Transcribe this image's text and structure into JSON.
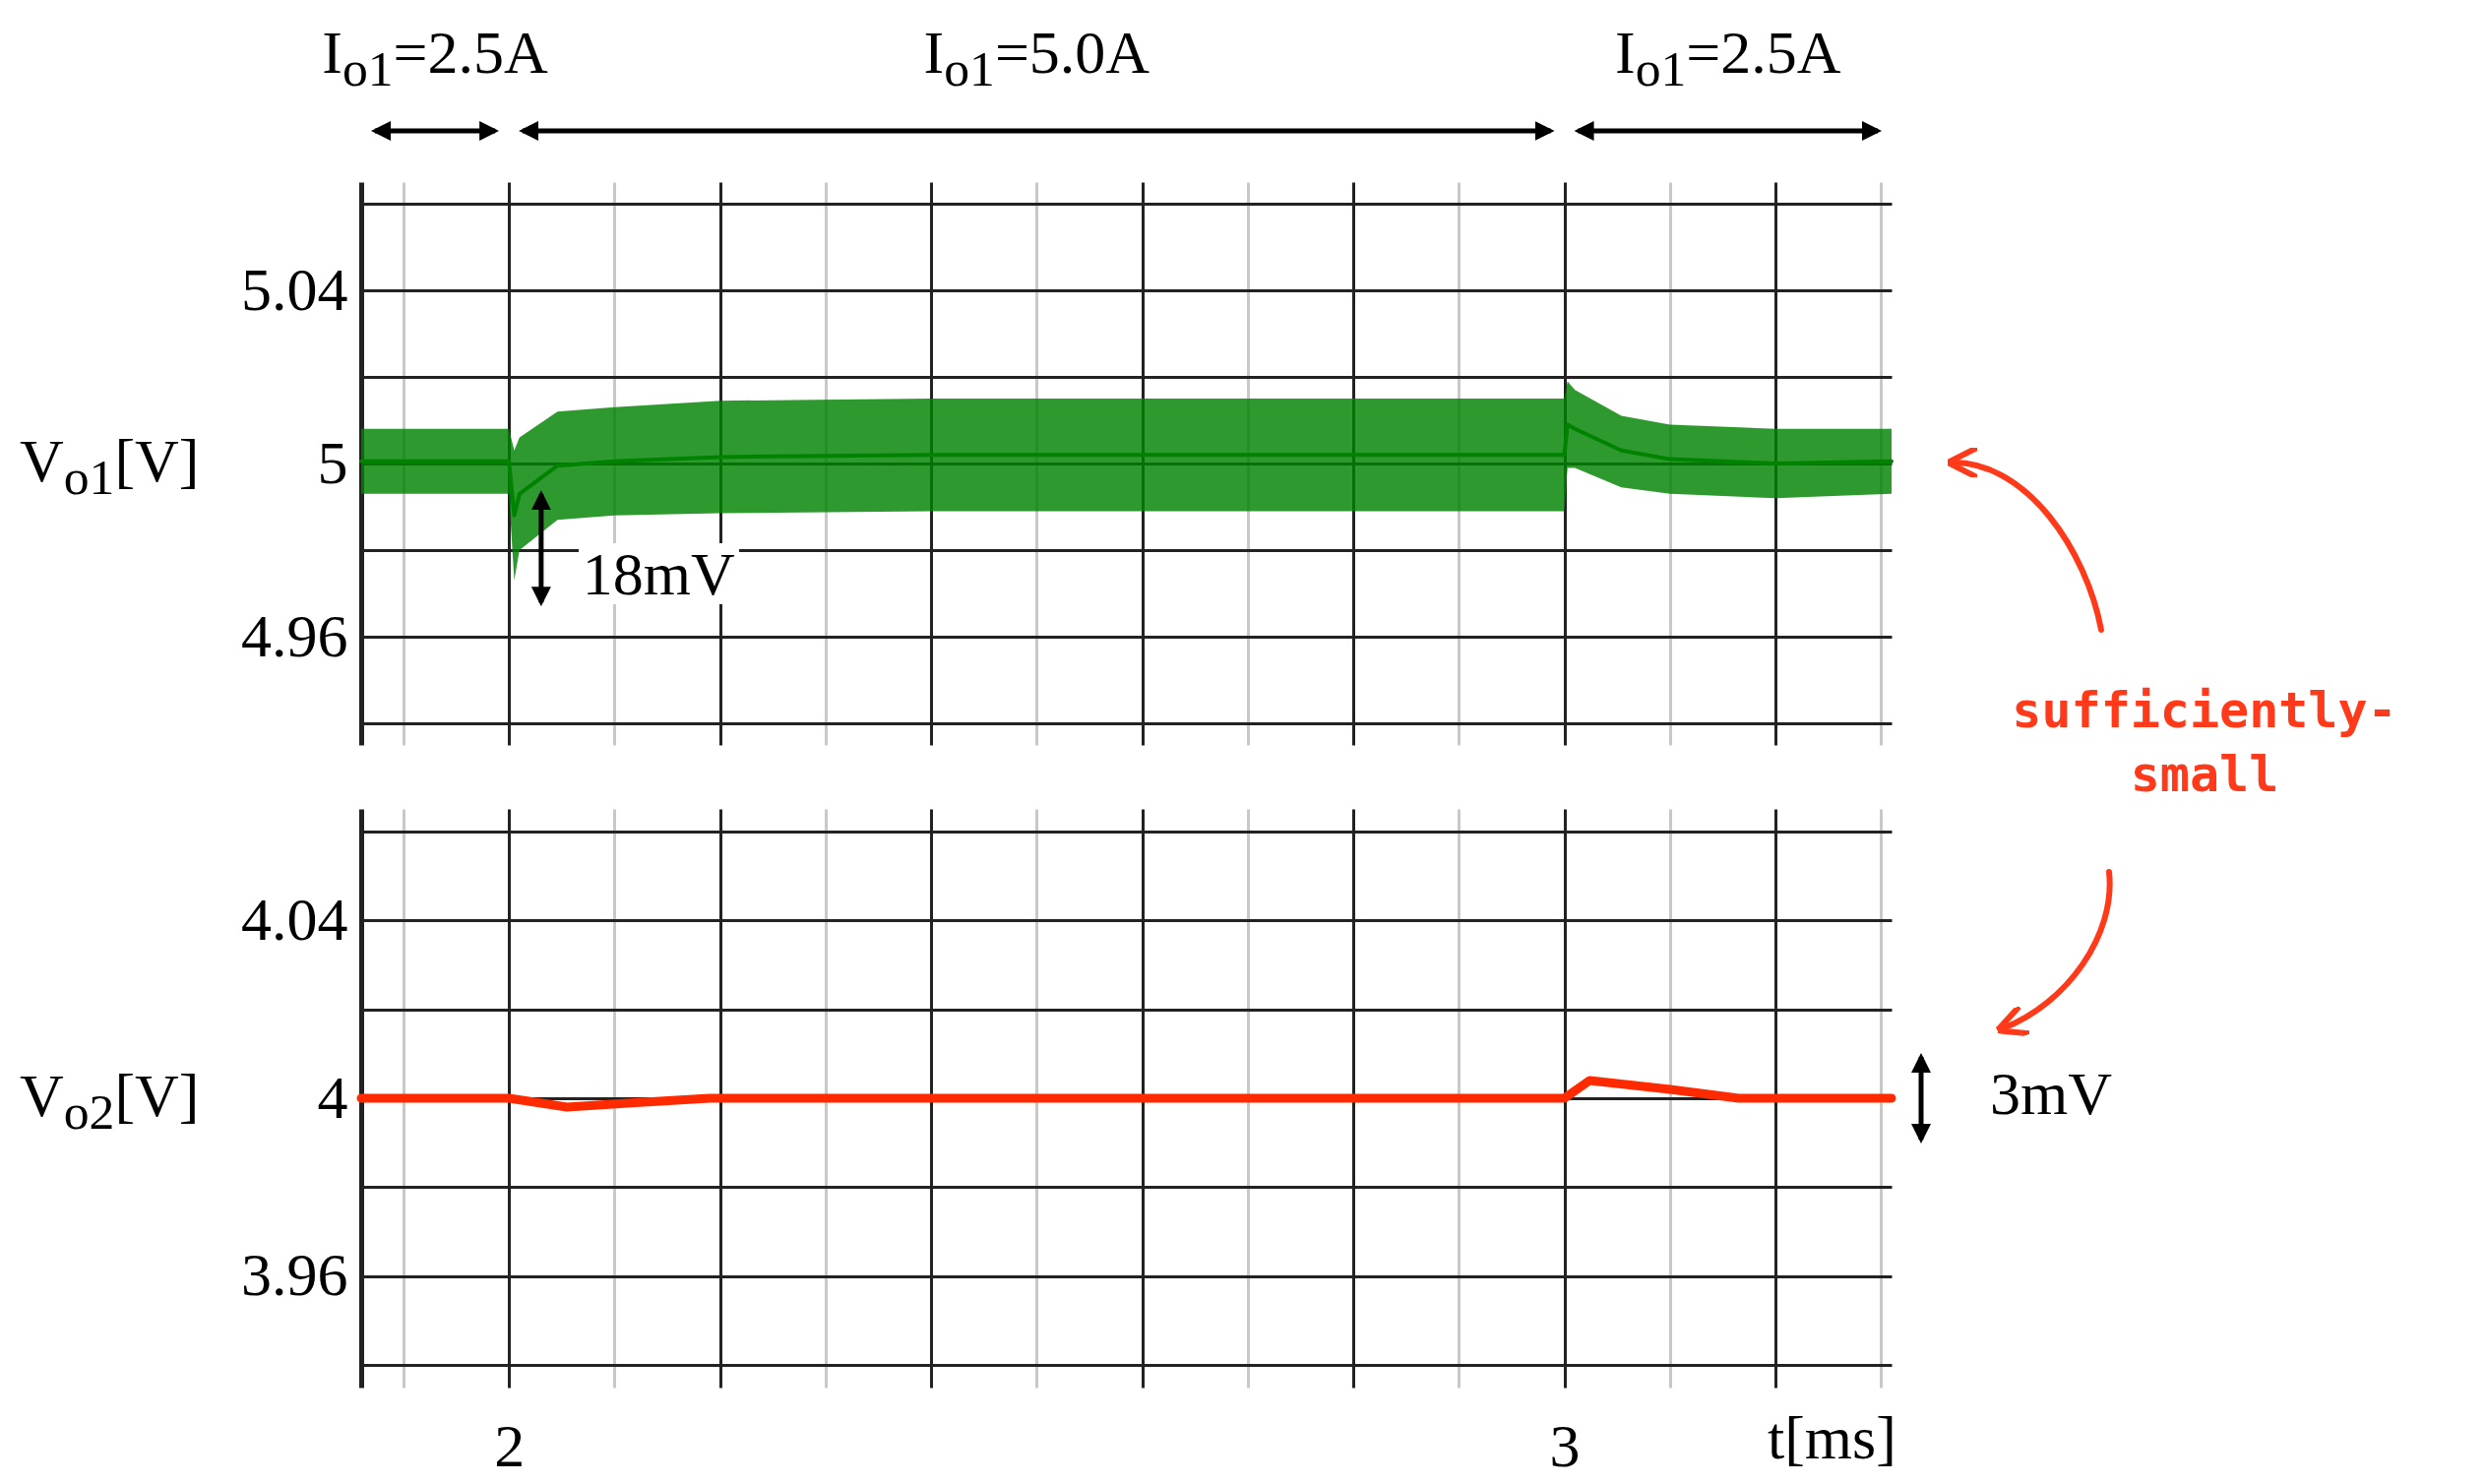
{
  "chart_data": [
    {
      "type": "line",
      "ylabel": "V$_{o1}$[V]",
      "xlim": [
        1.86,
        3.31
      ],
      "ylim": [
        4.935,
        5.065
      ],
      "tick_labels": "y",
      "grid": true,
      "xticks": [
        {
          "value": 1.9,
          "label": null
        },
        {
          "value": 2,
          "label": null
        },
        {
          "value": 2.1,
          "label": null
        },
        {
          "value": 2.2,
          "label": null
        },
        {
          "value": 2.3,
          "label": null
        },
        {
          "value": 2.4,
          "label": null
        },
        {
          "value": 2.5,
          "label": null
        },
        {
          "value": 2.6,
          "label": null
        },
        {
          "value": 2.7,
          "label": null
        },
        {
          "value": 2.8,
          "label": null
        },
        {
          "value": 2.9,
          "label": null
        },
        {
          "value": 3,
          "label": null
        },
        {
          "value": 3.1,
          "label": null
        },
        {
          "value": 3.2,
          "label": null
        },
        {
          "value": 3.3,
          "label": null
        }
      ],
      "yticks": [
        {
          "value": 4.94,
          "label": null
        },
        4.96,
        {
          "value": 4.98,
          "label": null
        },
        5,
        {
          "value": 5.02,
          "label": null
        },
        5.04,
        {
          "value": 5.06,
          "label": null
        }
      ],
      "x": [
        1.86,
        2.0,
        2.005,
        2.01,
        2.046,
        2.1,
        2.2,
        2.4,
        3.0,
        3.003,
        3.01,
        3.054,
        3.1,
        3.2,
        3.31
      ],
      "series": [
        {
          "color": "#008300",
          "values": [
            5.0005,
            5.0005,
            4.988,
            4.993,
            4.9995,
            5.0005,
            5.0015,
            5.002,
            5.002,
            5.009,
            5.008,
            5.003,
            5.001,
            5.0,
            5.0005
          ],
          "lower": [
            4.993,
            4.993,
            4.973,
            4.98,
            4.987,
            4.988,
            4.9885,
            4.989,
            4.989,
            4.999,
            4.999,
            4.9945,
            4.993,
            4.992,
            4.993
          ],
          "upper": [
            5.008,
            5.008,
            5.003,
            5.006,
            5.012,
            5.013,
            5.0145,
            5.015,
            5.015,
            5.019,
            5.017,
            5.011,
            5.009,
            5.008,
            5.008
          ]
        }
      ],
      "annotations": [
        "I$_{o1}$=2.5A",
        "I$_{o1}$=5.0A",
        "I$_{o1}$=2.5A",
        {
          "text": "18mV",
          "x": 2.01,
          "y": 4.977
        },
        "sufficiently-small"
      ]
    },
    {
      "type": "line",
      "ylabel": "V$_{o2}$[V]",
      "xlabel": "t[ms]",
      "xlim": [
        1.86,
        3.31
      ],
      "ylim": [
        3.935,
        4.065
      ],
      "grid": true,
      "xticks": [
        {
          "value": 1.9,
          "label": null
        },
        2,
        {
          "value": 2.1,
          "label": null
        },
        {
          "value": 2.2,
          "label": null
        },
        {
          "value": 2.3,
          "label": null
        },
        {
          "value": 2.4,
          "label": null
        },
        {
          "value": 2.5,
          "label": null
        },
        {
          "value": 2.6,
          "label": null
        },
        {
          "value": 2.7,
          "label": null
        },
        {
          "value": 2.8,
          "label": null
        },
        {
          "value": 2.9,
          "label": null
        },
        3,
        {
          "value": 3.1,
          "label": null
        },
        {
          "value": 3.2,
          "label": null
        },
        {
          "value": 3.3,
          "label": null
        }
      ],
      "yticks": [
        {
          "value": 3.94,
          "label": null
        },
        3.96,
        {
          "value": 3.98,
          "label": null
        },
        4,
        {
          "value": 4.02,
          "label": null
        },
        4.04,
        {
          "value": 4.06,
          "label": null
        }
      ],
      "x": [
        1.86,
        2.0,
        2.055,
        2.12,
        2.19,
        3.0,
        3.024,
        3.1,
        3.165,
        3.31
      ],
      "series": [
        {
          "color": "#ff2a00",
          "values": [
            4.0,
            4.0,
            3.998,
            3.999,
            4.0,
            4.0,
            4.004,
            4.002,
            4.0,
            4.0
          ]
        }
      ],
      "annotations": [
        "3mV"
      ]
    }
  ]
}
